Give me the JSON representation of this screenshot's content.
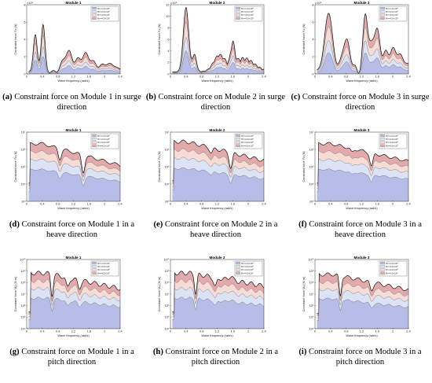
{
  "legend_entries": [
    "Hr=1.0×10⁶",
    "Hr=2.0×10⁶",
    "Hr=3.0×10⁶",
    "Hr=4.0×10⁶"
  ],
  "colors": {
    "band1": "#b7bde6",
    "band2": "#dbe3f5",
    "band3": "#f7dcd6",
    "band4": "#e3aaab",
    "line": "#111111"
  },
  "chart_data": [
    {
      "id": "a",
      "type": "area",
      "title": "Module 1",
      "xlabel": "Wave frequency (rad/s)",
      "ylabel": "Constraint force Fx (N)",
      "xlim": [
        0,
        2.4
      ],
      "xticks": [
        "0",
        "0.4",
        "0.8",
        "1.2",
        "1.6",
        "2",
        "2.4"
      ],
      "yticks": [
        "0",
        "2",
        "4",
        "6",
        "8"
      ],
      "yexp": "×10⁵",
      "ylim": [
        0,
        8
      ],
      "caption_letter": "(a)",
      "caption_text": "Constraint force on Module 1 in surge direction"
    },
    {
      "id": "b",
      "type": "area",
      "title": "Module 2",
      "xlabel": "Wave frequency (rad/s)",
      "ylabel": "Constraint force Fx (N)",
      "xlim": [
        0,
        2.4
      ],
      "xticks": [
        "0",
        "0.4",
        "0.8",
        "1.2",
        "1.6",
        "2",
        "2.4"
      ],
      "yticks": [
        "0",
        "2",
        "4",
        "6",
        "8",
        "10",
        "12"
      ],
      "yexp": "×10⁵",
      "ylim": [
        0,
        12
      ],
      "caption_letter": "(b)",
      "caption_text": "Constraint force on Module 2 in surge direction"
    },
    {
      "id": "c",
      "type": "area",
      "title": "Module 3",
      "xlabel": "Wave frequency (rad/s)",
      "ylabel": "Constraint force Fx (N)",
      "xlim": [
        0,
        2.4
      ],
      "xticks": [
        "0",
        "0.4",
        "0.8",
        "1.2",
        "1.6",
        "2",
        "2.4"
      ],
      "yticks": [
        "0",
        "2",
        "4",
        "6",
        "8"
      ],
      "yexp": "×10⁵",
      "ylim": [
        0,
        8
      ],
      "caption_letter": "(c)",
      "caption_text": "Constraint force on Module 3 in surge direction"
    },
    {
      "id": "d",
      "type": "area",
      "title": "Module 1",
      "xlabel": "Wave frequency (rad/s)",
      "ylabel": "Constraint force Fz (N)",
      "xlim": [
        0,
        2.4
      ],
      "xticks": [
        "0",
        "0.4",
        "0.8",
        "1.2",
        "1.6",
        "2",
        "2.4"
      ],
      "yticks": [
        "10³",
        "10⁴",
        "10⁵",
        "10⁶",
        "10⁷"
      ],
      "log": true,
      "caption_letter": "(d)",
      "caption_text": "Constraint force on Module 1 in a heave direction"
    },
    {
      "id": "e",
      "type": "area",
      "title": "Module 2",
      "xlabel": "Wave frequency (rad/s)",
      "ylabel": "Constraint force Fz (N)",
      "xlim": [
        0,
        2.4
      ],
      "xticks": [
        "0",
        "0.4",
        "0.8",
        "1.2",
        "1.6",
        "2",
        "2.4"
      ],
      "yticks": [
        "10³",
        "10⁴",
        "10⁵",
        "10⁶",
        "10⁷"
      ],
      "log": true,
      "caption_letter": "(e)",
      "caption_text": "Constraint force on Module 2 in a heave direction"
    },
    {
      "id": "f",
      "type": "area",
      "title": "Module 3",
      "xlabel": "Wave frequency (rad/s)",
      "ylabel": "Constraint force Fz (N)",
      "xlim": [
        0,
        2.4
      ],
      "xticks": [
        "0",
        "0.4",
        "0.8",
        "1.2",
        "1.6",
        "2",
        "2.4"
      ],
      "yticks": [
        "10³",
        "10⁴",
        "10⁵",
        "10⁶",
        "10⁷"
      ],
      "log": true,
      "caption_letter": "(f)",
      "caption_text": "Constraint force on Module 3 in a heave direction"
    },
    {
      "id": "g",
      "type": "area",
      "title": "Module 1",
      "xlabel": "Wave frequency (rad/s)",
      "ylabel": "Constraint force My (N·m)",
      "xlim": [
        0,
        2.4
      ],
      "xticks": [
        "0",
        "0.4",
        "0.8",
        "1.2",
        "1.6",
        "2",
        "2.4"
      ],
      "yticks": [
        "10⁴",
        "10⁵",
        "10⁶",
        "10⁷",
        "10⁸",
        "10⁹",
        "10¹⁰"
      ],
      "log": true,
      "caption_letter": "(g)",
      "caption_text": "Constraint force on Module 1 in a pitch direction"
    },
    {
      "id": "h",
      "type": "area",
      "title": "Module 2",
      "xlabel": "Wave frequency (rad/s)",
      "ylabel": "Constraint force My (N·m)",
      "xlim": [
        0,
        2.4
      ],
      "xticks": [
        "0",
        "0.4",
        "0.8",
        "1.2",
        "1.6",
        "2",
        "2.4"
      ],
      "yticks": [
        "10⁴",
        "10⁵",
        "10⁶",
        "10⁷",
        "10⁸",
        "10⁹",
        "10¹⁰"
      ],
      "log": true,
      "caption_letter": "(h)",
      "caption_text": "Constraint force on Module 2 in a pitch direction"
    },
    {
      "id": "i",
      "type": "area",
      "title": "Module 3",
      "xlabel": "Wave frequency (rad/s)",
      "ylabel": "Constraint force My (N·m)",
      "xlim": [
        0,
        2.4
      ],
      "xticks": [
        "0",
        "0.4",
        "0.8",
        "1.2",
        "1.6",
        "2",
        "2.4"
      ],
      "yticks": [
        "10⁴",
        "10⁵",
        "10⁶",
        "10⁷",
        "10⁸",
        "10⁹",
        "10¹⁰"
      ],
      "log": true,
      "caption_letter": "(i)",
      "caption_text": "Constraint force on Module 3 in a pitch direction"
    }
  ]
}
